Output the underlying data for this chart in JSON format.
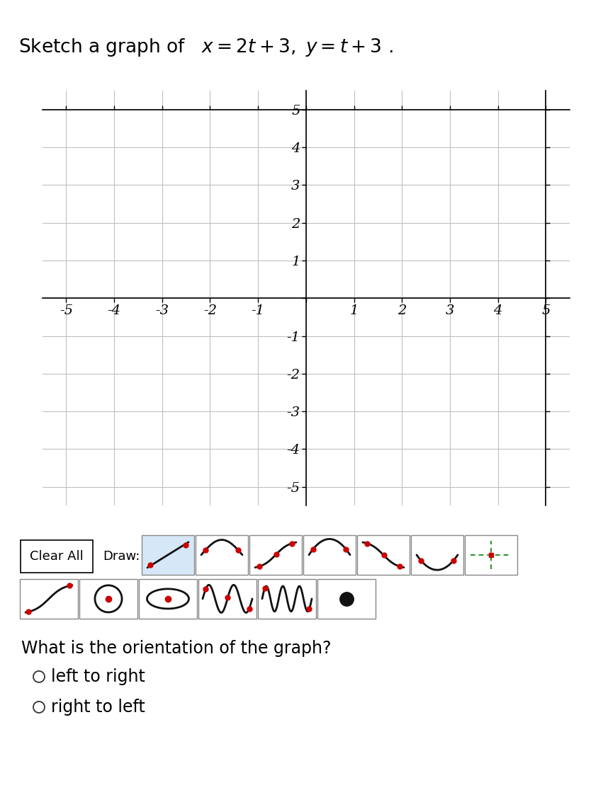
{
  "title_plain": "Sketch a graph of  ",
  "title_math": "$x = 2t+3, y = t+3$  .",
  "title_fontsize": 19,
  "axis_xlim": [
    -5.5,
    5.5
  ],
  "axis_ylim": [
    -5.5,
    5.5
  ],
  "grid_color": "#c0c0c0",
  "axis_color": "#000000",
  "background_color": "#ffffff",
  "question_text": "What is the orientation of the graph?",
  "option1": "left to right",
  "option2": "right to left",
  "question_fontsize": 17,
  "option_fontsize": 17,
  "toolbar_label": "Draw:",
  "clear_button": "Clear All"
}
